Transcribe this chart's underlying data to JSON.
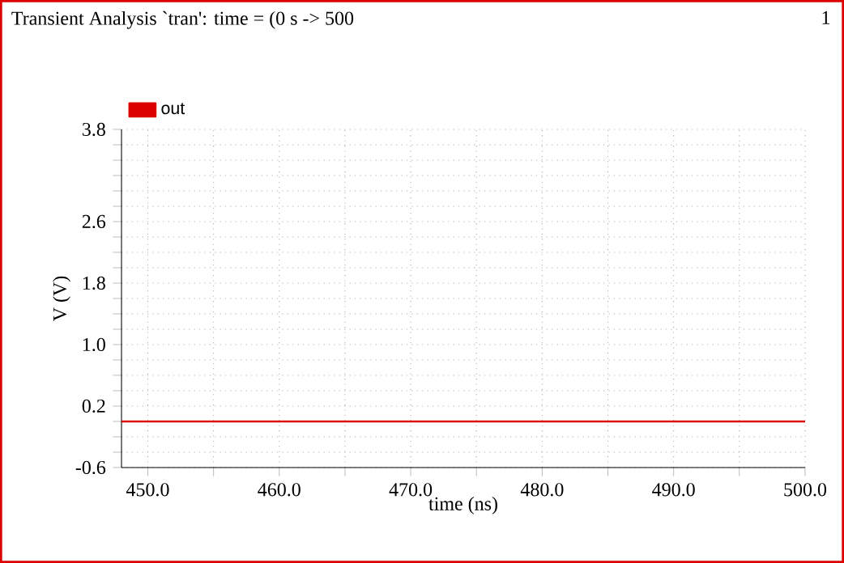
{
  "chart_data": {
    "type": "line",
    "title": "Transient Analysis `tran': time = (0 s -> 500",
    "annotations": [
      "1"
    ],
    "xlabel": "time (ns)",
    "ylabel": "V (V)",
    "x": [
      448,
      500
    ],
    "series": [
      {
        "name": "out",
        "color": "#dd0000",
        "values": [
          0.0,
          0.0
        ]
      }
    ],
    "xlim": [
      448,
      500
    ],
    "xticks": [
      {
        "value": 450,
        "label": "450.0"
      },
      {
        "value": 455,
        "label": null
      },
      {
        "value": 460,
        "label": "460.0"
      },
      {
        "value": 465,
        "label": null
      },
      {
        "value": 470,
        "label": "470.0"
      },
      {
        "value": 475,
        "label": null
      },
      {
        "value": 480,
        "label": "480.0"
      },
      {
        "value": 485,
        "label": null
      },
      {
        "value": 490,
        "label": "490.0"
      },
      {
        "value": 495,
        "label": null
      },
      {
        "value": 500,
        "label": "500.0"
      }
    ],
    "ylim": [
      -0.6,
      3.8
    ],
    "yticks": [
      -0.6,
      {
        "value": -0.4,
        "label": null
      },
      {
        "value": -0.2,
        "label": null
      },
      {
        "value": 0.0,
        "label": null
      },
      0.2,
      {
        "value": 0.4,
        "label": null
      },
      {
        "value": 0.6,
        "label": null
      },
      {
        "value": 0.8,
        "label": null
      },
      {
        "value": 1.0,
        "label": "1.0"
      },
      {
        "value": 1.2,
        "label": null
      },
      {
        "value": 1.4,
        "label": null
      },
      {
        "value": 1.6,
        "label": null
      },
      1.8,
      {
        "value": 2.0,
        "label": null
      },
      {
        "value": 2.2,
        "label": null
      },
      {
        "value": 2.4,
        "label": null
      },
      2.6,
      {
        "value": 2.8,
        "label": null
      },
      {
        "value": 3.0,
        "label": null
      },
      {
        "value": 3.2,
        "label": null
      },
      {
        "value": 3.4,
        "label": null
      },
      {
        "value": 3.6,
        "label": null
      },
      3.8
    ],
    "grid": true,
    "legend": "top left",
    "line_style": "solid",
    "marker": "none"
  }
}
